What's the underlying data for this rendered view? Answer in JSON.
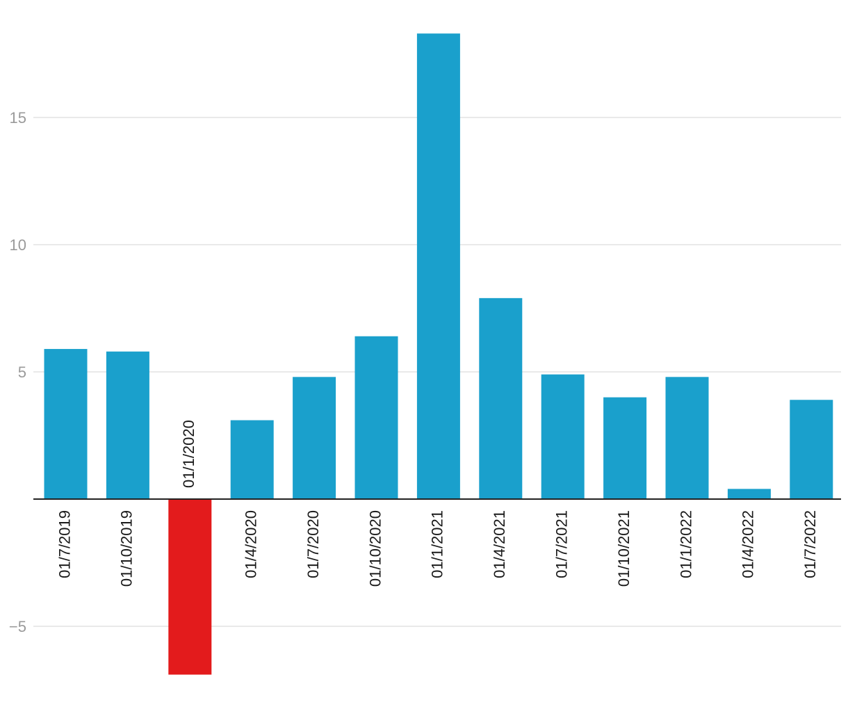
{
  "chart_data": {
    "type": "bar",
    "categories": [
      "01/7/2019",
      "01/10/2019",
      "01/1/2020",
      "01/4/2020",
      "01/7/2020",
      "01/10/2020",
      "01/1/2021",
      "01/4/2021",
      "01/7/2021",
      "01/10/2021",
      "01/1/2022",
      "01/4/2022",
      "01/7/2022"
    ],
    "values": [
      5.9,
      5.8,
      -6.9,
      3.1,
      4.8,
      6.4,
      18.3,
      7.9,
      4.9,
      4.0,
      4.8,
      0.4,
      3.9
    ],
    "title": "",
    "xlabel": "",
    "ylabel": "",
    "ylim": [
      -7.5,
      19.3
    ],
    "yticks": [
      -5,
      5,
      10,
      15
    ],
    "ytick_labels": [
      "−5",
      "5",
      "10",
      "15"
    ],
    "grid": true,
    "colors": {
      "positive": "#1aa0cc",
      "negative": "#e31b1c"
    }
  }
}
